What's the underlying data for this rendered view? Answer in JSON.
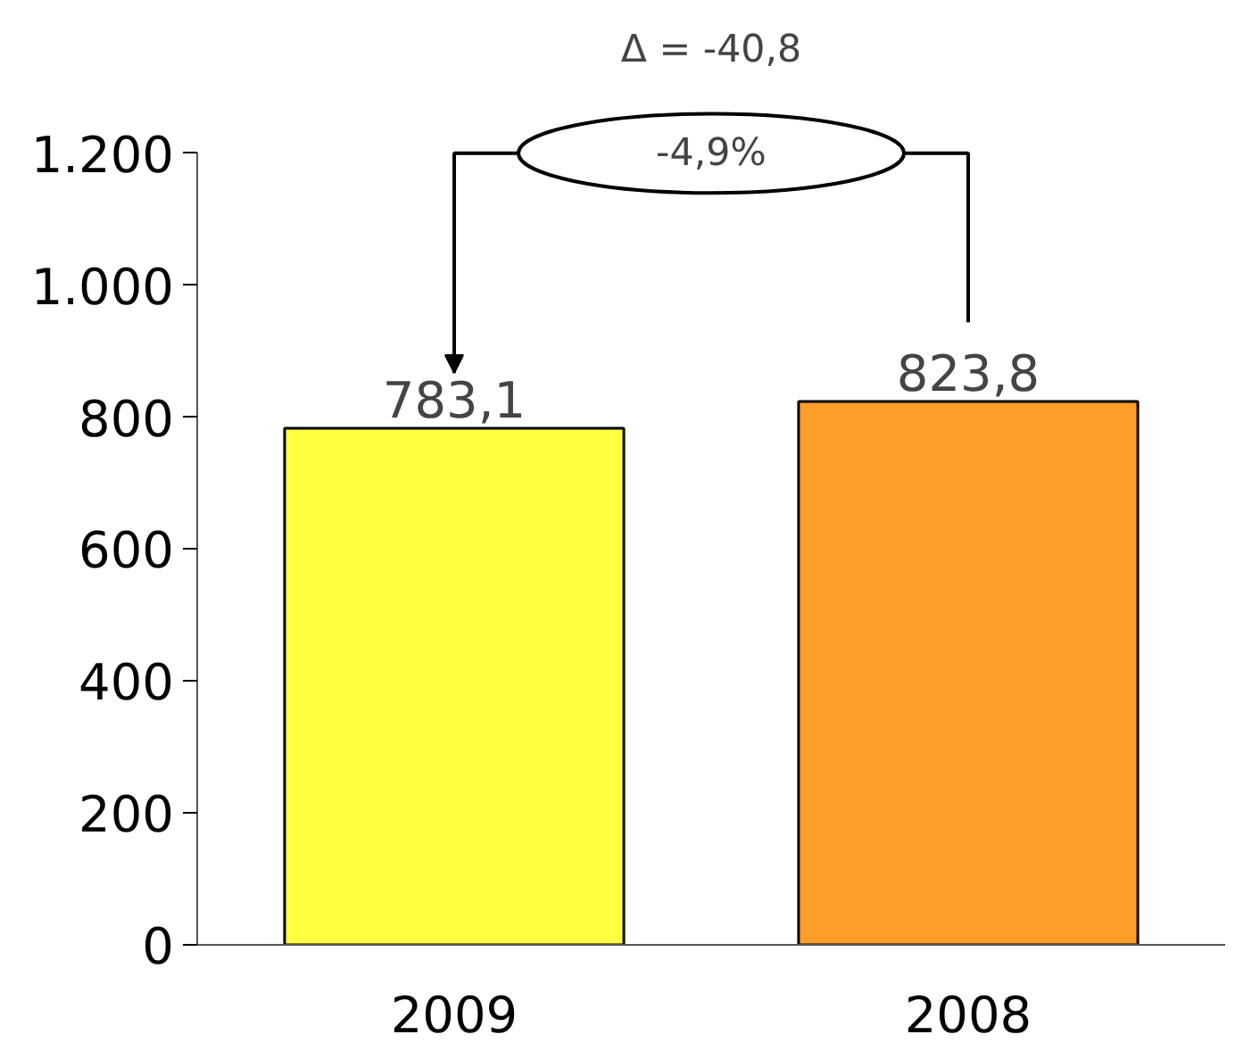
{
  "chart_data": {
    "type": "bar",
    "categories": [
      "2009",
      "2008"
    ],
    "values": [
      783.1,
      823.8
    ],
    "colors": [
      "#ffff40",
      "#ff9f2a"
    ],
    "value_labels": [
      "783,1",
      "823,8"
    ],
    "ylim": [
      0,
      1200
    ],
    "yticks": [
      0,
      200,
      400,
      600,
      800,
      {
        "value": 1000,
        "label": "1.000"
      },
      {
        "value": 1200,
        "label": "1.200"
      }
    ],
    "annotations": [
      "Δ = -40,8",
      "-4,9%"
    ],
    "grid": false
  }
}
